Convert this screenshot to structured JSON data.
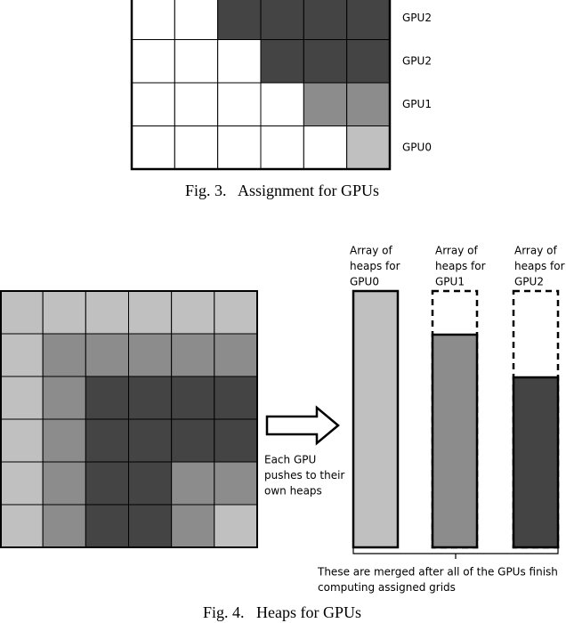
{
  "fig3": {
    "gpu_labels": [
      "GPU2",
      "GPU2",
      "GPU1",
      "GPU0"
    ],
    "caption": "Fig. 3.   Assignment for GPUs"
  },
  "fig4": {
    "heaps": [
      {
        "label_lines": [
          "Array of",
          "heaps for",
          "GPU0"
        ]
      },
      {
        "label_lines": [
          "Array of",
          "heaps for",
          "GPU1"
        ]
      },
      {
        "label_lines": [
          "Array of",
          "heaps for",
          "GPU2"
        ]
      }
    ],
    "arrow_text": [
      "Each GPU",
      "pushes to their",
      "own heaps"
    ],
    "merge_note": [
      "These are merged after all of the GPUs finish",
      "computing assigned grids"
    ],
    "caption": "Fig. 4.   Heaps for GPUs"
  }
}
